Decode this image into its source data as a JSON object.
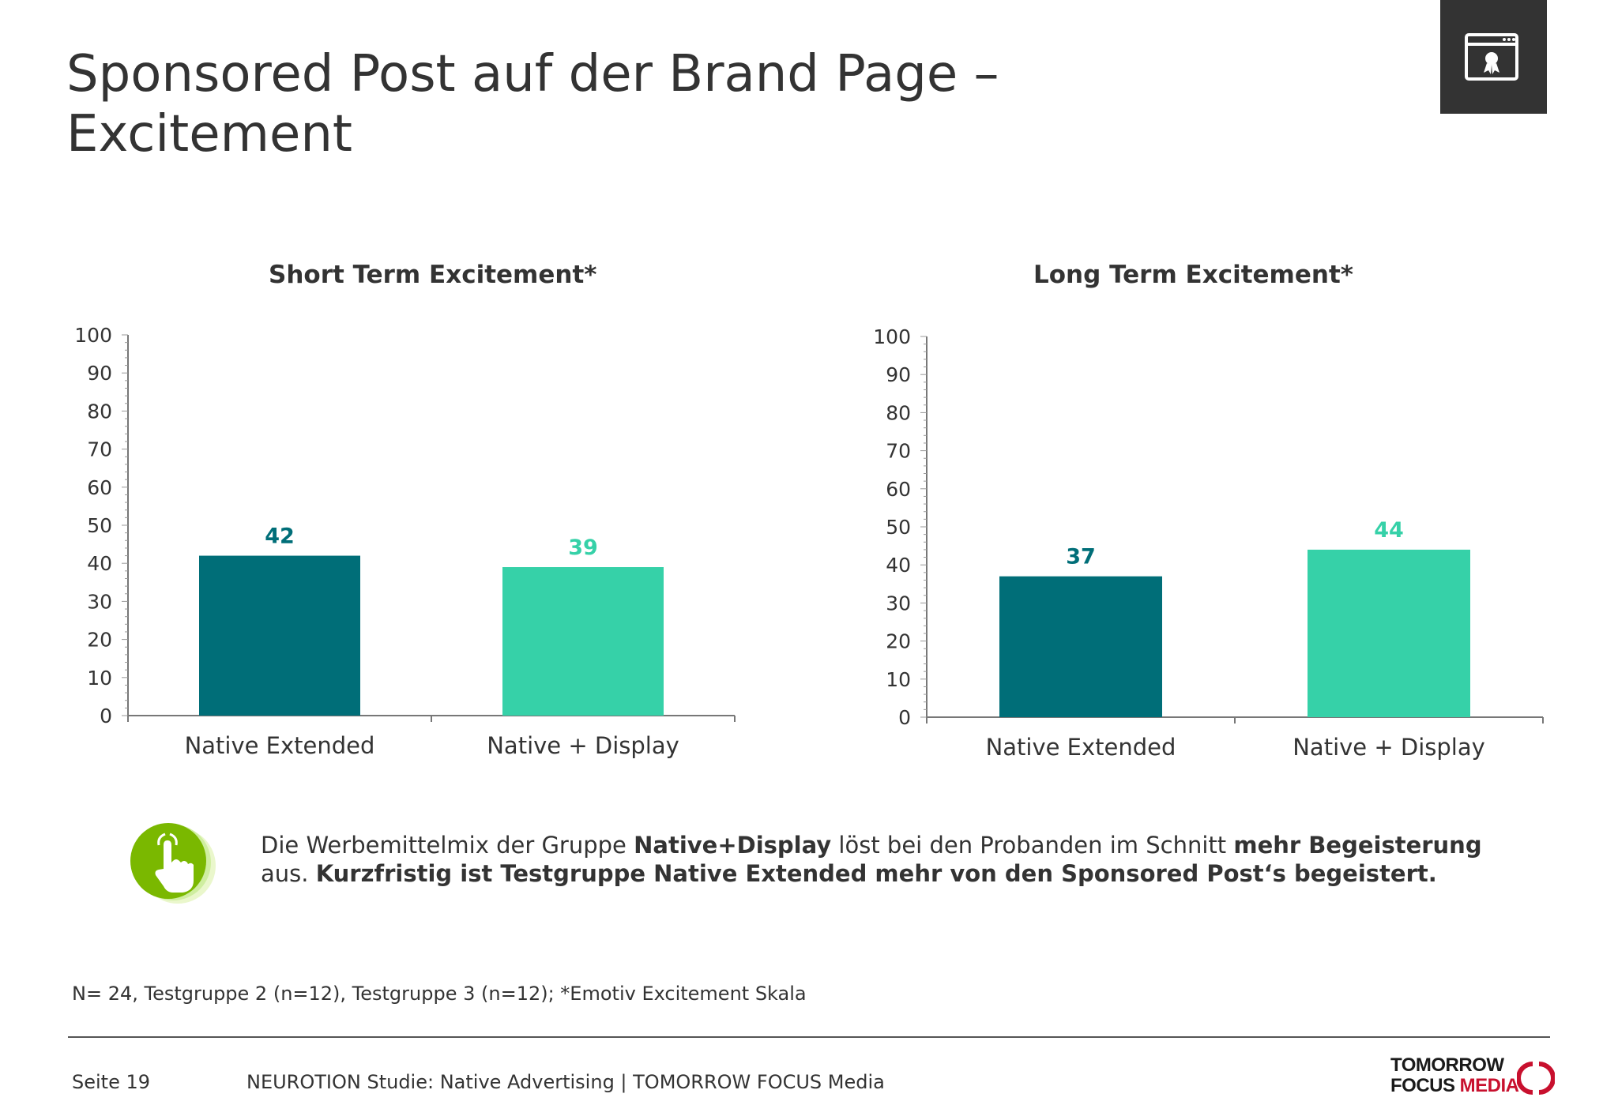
{
  "title": {
    "line1": "Sponsored Post auf der Brand Page –",
    "line2": "Excitement"
  },
  "colors": {
    "native_extended": "#006E78",
    "native_display": "#36D1A8",
    "badge_bg": "#333333",
    "callout_green": "#7AB800",
    "logo_red": "#C8102E"
  },
  "badge": {
    "icon": "certificate-window-icon"
  },
  "chart_data": [
    {
      "type": "bar",
      "title": "Short Term Excitement*",
      "categories": [
        "Native Extended",
        "Native + Display"
      ],
      "values": [
        42,
        39
      ],
      "value_labels": [
        "42",
        "39"
      ],
      "ylim": [
        0,
        100
      ],
      "yticks": [
        "0",
        "10",
        "20",
        "30",
        "40",
        "50",
        "60",
        "70",
        "80",
        "90",
        "100"
      ],
      "grid": false
    },
    {
      "type": "bar",
      "title": "Long Term Excitement*",
      "categories": [
        "Native Extended",
        "Native + Display"
      ],
      "values": [
        37,
        44
      ],
      "value_labels": [
        "37",
        "44"
      ],
      "ylim": [
        0,
        100
      ],
      "yticks": [
        "0",
        "10",
        "20",
        "30",
        "40",
        "50",
        "60",
        "70",
        "80",
        "90",
        "100"
      ],
      "grid": false
    }
  ],
  "callout": {
    "icon": "hand-pointer-icon",
    "line1_a": "Die Werbemittelmix der Gruppe ",
    "line1_b": "Native+Display",
    "line1_c": " löst bei den Probanden im Schnitt ",
    "line1_d": "mehr Begeisterung",
    "line2_a": "aus. ",
    "line2_b": "Kurzfristig ist Testgruppe Native Extended mehr von den Sponsored Post‘s begeistert."
  },
  "footnote": "N= 24, Testgruppe 2 (n=12), Testgruppe 3 (n=12); *Emotiv Excitement Skala",
  "footer": {
    "page": "Seite 19",
    "text": "NEUROTION Studie: Native Advertising | TOMORROW FOCUS Media",
    "logo_line1": "TOMORROW",
    "logo_line2_a": "FOCUS ",
    "logo_line2_b": "MEDIA"
  }
}
